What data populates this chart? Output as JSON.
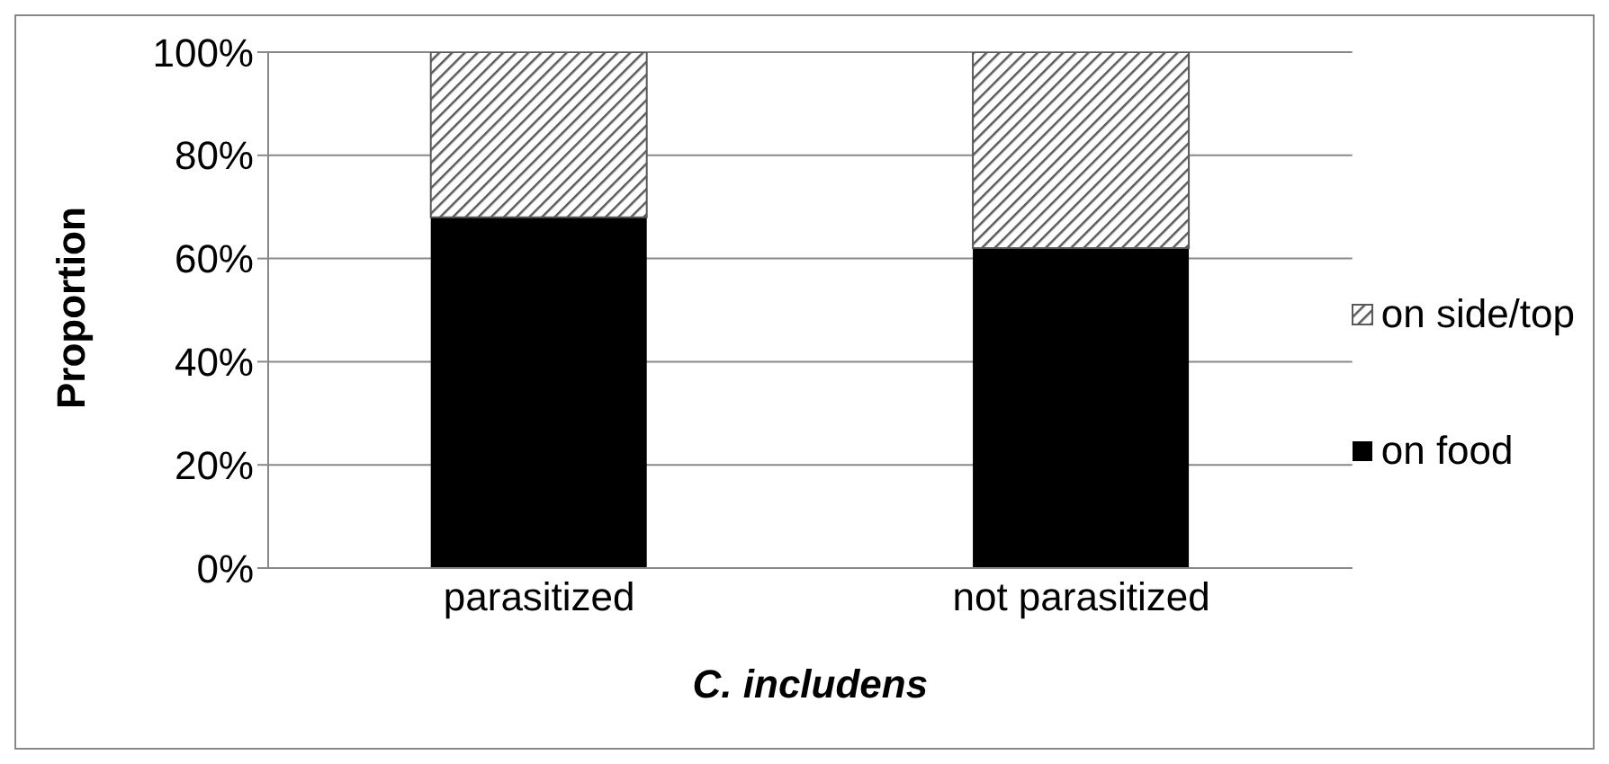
{
  "chart_data": {
    "type": "bar",
    "stacked": true,
    "xlabel": "C. includens",
    "ylabel": "Proportion",
    "categories": [
      "parasitized",
      "not parasitized"
    ],
    "series": [
      {
        "name": "on food",
        "color": "#000000",
        "values": [
          68,
          62
        ]
      },
      {
        "name": "on side/top",
        "color": "#595959",
        "values": [
          32,
          38
        ]
      }
    ],
    "ylim": [
      0,
      100
    ],
    "yticks": [
      {
        "value": 0,
        "label": "0%"
      },
      {
        "value": 20,
        "label": "20%"
      },
      {
        "value": 40,
        "label": "40%"
      },
      {
        "value": 60,
        "label": "60%"
      },
      {
        "value": 80,
        "label": "80%"
      },
      {
        "value": 100,
        "label": "100%"
      }
    ],
    "grid": "y",
    "legend": "right"
  }
}
